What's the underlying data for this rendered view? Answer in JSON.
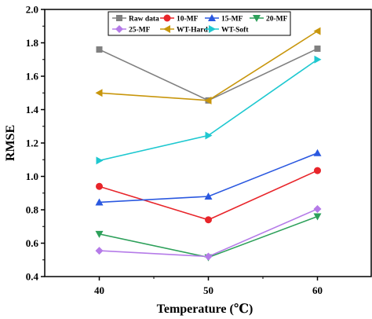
{
  "chart_data": {
    "type": "line",
    "xlabel": "Temperature (℃)",
    "ylabel": "RMSE",
    "x": [
      40,
      50,
      60
    ],
    "xlim": [
      35,
      65
    ],
    "ylim": [
      0.4,
      2.0
    ],
    "xticks": [
      "40",
      "50",
      "60"
    ],
    "yticks": [
      "0.4",
      "0.6",
      "0.8",
      "1.0",
      "1.2",
      "1.4",
      "1.6",
      "1.8",
      "2.0"
    ],
    "grid": false,
    "legend_position": "top-right",
    "series": [
      {
        "name": "Raw data",
        "color": "#808080",
        "marker": "square",
        "values": [
          1.76,
          1.455,
          1.765
        ]
      },
      {
        "name": "10-MF",
        "color": "#e8252a",
        "marker": "circle",
        "values": [
          0.94,
          0.74,
          1.035
        ]
      },
      {
        "name": "15-MF",
        "color": "#2a58e0",
        "marker": "triangle-up",
        "values": [
          0.845,
          0.88,
          1.14
        ]
      },
      {
        "name": "20-MF",
        "color": "#2da05a",
        "marker": "triangle-down",
        "values": [
          0.655,
          0.515,
          0.76
        ]
      },
      {
        "name": "25-MF",
        "color": "#b57be8",
        "marker": "diamond",
        "values": [
          0.555,
          0.52,
          0.805
        ]
      },
      {
        "name": "WT-Hard",
        "color": "#c8960c",
        "marker": "triangle-left",
        "values": [
          1.5,
          1.455,
          1.87
        ]
      },
      {
        "name": "WT-Soft",
        "color": "#1ec8d0",
        "marker": "triangle-right",
        "values": [
          1.095,
          1.245,
          1.7
        ]
      }
    ]
  }
}
